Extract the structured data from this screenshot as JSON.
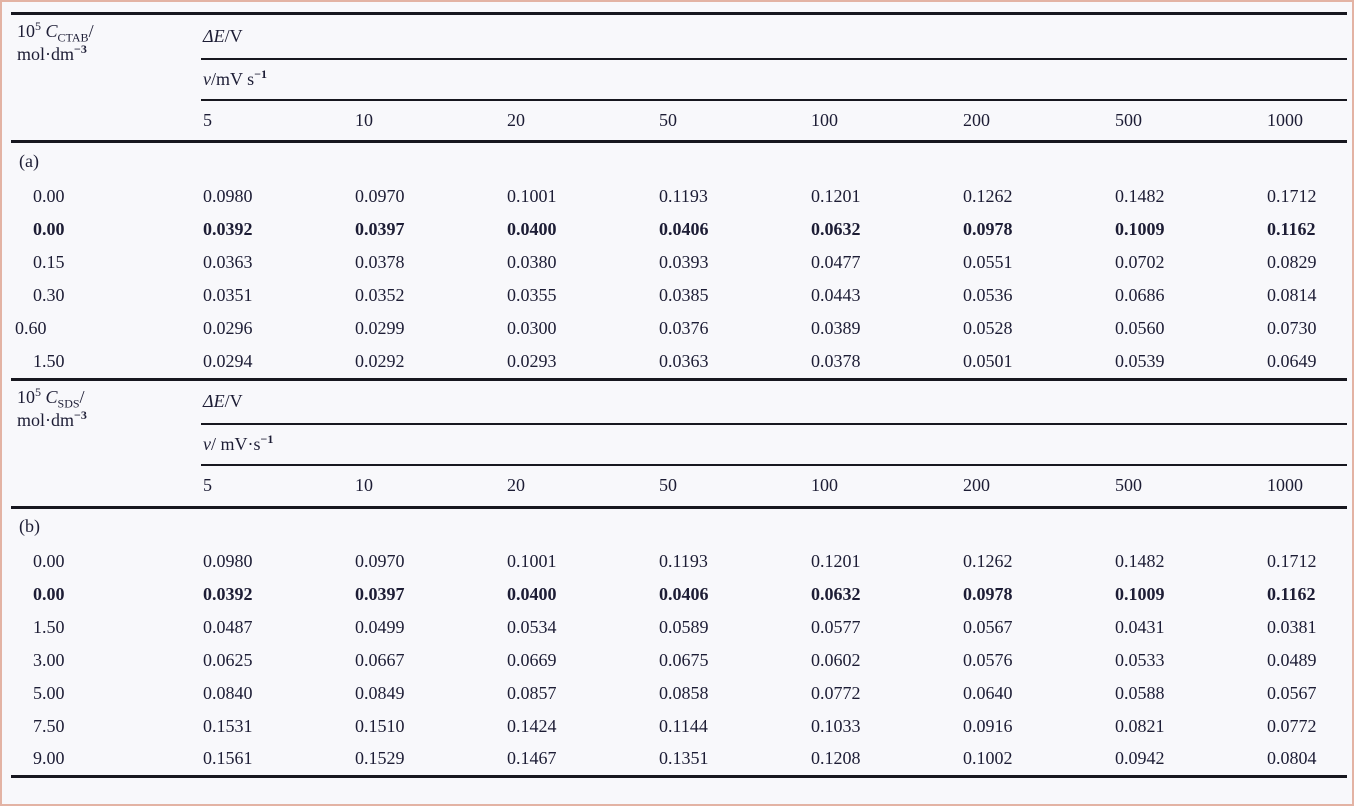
{
  "colors": {
    "text": "#1d1d35",
    "rule": "#17171f",
    "background": "#f8f8fb",
    "border": "#e3b3a4"
  },
  "sections": [
    {
      "id": "a",
      "label": "(a)",
      "head": {
        "factor": "10",
        "factor_exp": "5",
        "symbol": "C",
        "symbol_sub": "CTAB",
        "slash": "/",
        "unit": "mol·dm",
        "unit_exp": "−3",
        "delta_quantity": "ΔE",
        "per": "/V",
        "v": "v",
        "v_unit": "/mV s",
        "v_exp": "−1"
      },
      "scan_rates": [
        "5",
        "10",
        "20",
        "50",
        "100",
        "200",
        "500",
        "1000"
      ],
      "rows": [
        {
          "conc": "0.00",
          "bold": false,
          "values": [
            "0.0980",
            "0.0970",
            "0.1001",
            "0.1193",
            "0.1201",
            "0.1262",
            "0.1482",
            "0.1712"
          ]
        },
        {
          "conc": "0.00",
          "bold": true,
          "values": [
            "0.0392",
            "0.0397",
            "0.0400",
            "0.0406",
            "0.0632",
            "0.0978",
            "0.1009",
            "0.1162"
          ]
        },
        {
          "conc": "0.15",
          "bold": false,
          "values": [
            "0.0363",
            "0.0378",
            "0.0380",
            "0.0393",
            "0.0477",
            "0.0551",
            "0.0702",
            "0.0829"
          ]
        },
        {
          "conc": "0.30",
          "bold": false,
          "values": [
            "0.0351",
            "0.0352",
            "0.0355",
            "0.0385",
            "0.0443",
            "0.0536",
            "0.0686",
            "0.0814"
          ]
        },
        {
          "conc": "0.60",
          "bold": false,
          "values": [
            "0.0296",
            "0.0299",
            "0.0300",
            "0.0376",
            "0.0389",
            "0.0528",
            "0.0560",
            "0.0730"
          ]
        },
        {
          "conc": "1.50",
          "bold": false,
          "values": [
            "0.0294",
            "0.0292",
            "0.0293",
            "0.0363",
            "0.0378",
            "0.0501",
            "0.0539",
            "0.0649"
          ]
        }
      ]
    },
    {
      "id": "b",
      "label": "(b)",
      "head": {
        "factor": "10",
        "factor_exp": "5",
        "symbol": "C",
        "symbol_sub": "SDS",
        "slash": "/",
        "unit": "mol·dm",
        "unit_exp": "−3",
        "delta_quantity": "ΔE",
        "per": "/V",
        "v": "v",
        "v_unit": "/ mV·s",
        "v_exp": "−1"
      },
      "scan_rates": [
        "5",
        "10",
        "20",
        "50",
        "100",
        "200",
        "500",
        "1000"
      ],
      "rows": [
        {
          "conc": "0.00",
          "bold": false,
          "values": [
            "0.0980",
            "0.0970",
            "0.1001",
            "0.1193",
            "0.1201",
            "0.1262",
            "0.1482",
            "0.1712"
          ]
        },
        {
          "conc": "0.00",
          "bold": true,
          "values": [
            "0.0392",
            "0.0397",
            "0.0400",
            "0.0406",
            "0.0632",
            "0.0978",
            "0.1009",
            "0.1162"
          ]
        },
        {
          "conc": "1.50",
          "bold": false,
          "values": [
            "0.0487",
            "0.0499",
            "0.0534",
            "0.0589",
            "0.0577",
            "0.0567",
            "0.0431",
            "0.0381"
          ]
        },
        {
          "conc": "3.00",
          "bold": false,
          "values": [
            "0.0625",
            "0.0667",
            "0.0669",
            "0.0675",
            "0.0602",
            "0.0576",
            "0.0533",
            "0.0489"
          ]
        },
        {
          "conc": "5.00",
          "bold": false,
          "values": [
            "0.0840",
            "0.0849",
            "0.0857",
            "0.0858",
            "0.0772",
            "0.0640",
            "0.0588",
            "0.0567"
          ]
        },
        {
          "conc": "7.50",
          "bold": false,
          "values": [
            "0.1531",
            "0.1510",
            "0.1424",
            "0.1144",
            "0.1033",
            "0.0916",
            "0.0821",
            "0.0772"
          ]
        },
        {
          "conc": "9.00",
          "bold": false,
          "values": [
            "0.1561",
            "0.1529",
            "0.1467",
            "0.1351",
            "0.1208",
            "0.1002",
            "0.0942",
            "0.0804"
          ]
        }
      ]
    }
  ]
}
